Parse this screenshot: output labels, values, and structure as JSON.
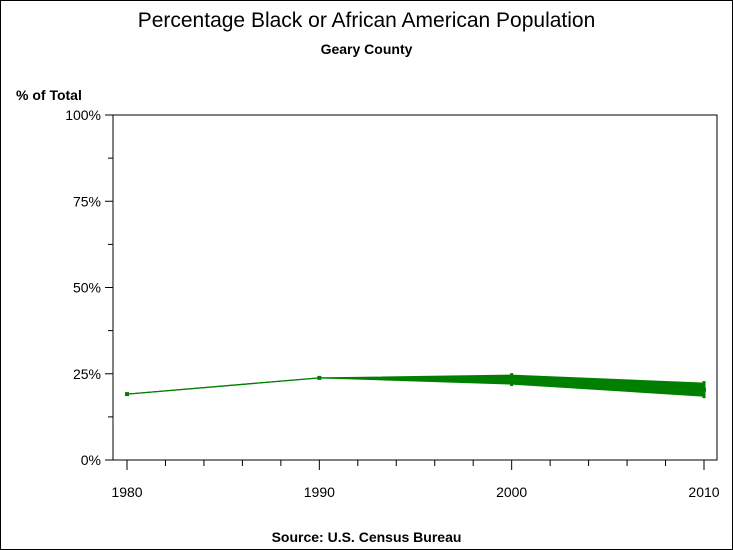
{
  "chart_data": {
    "type": "line",
    "title": "Percentage Black or African American Population",
    "subtitle": "Geary County",
    "ylabel": "% of Total",
    "xlabel": "",
    "footnote": "Source: U.S. Census Bureau",
    "x": [
      1980,
      1990,
      2000,
      2010
    ],
    "xlim": [
      1980,
      2010
    ],
    "xticks": [
      "1980",
      "1990",
      "2000",
      "2010"
    ],
    "ylim": [
      0,
      100
    ],
    "yticks": [
      "0%",
      "25%",
      "50%",
      "75%",
      "100%"
    ],
    "grid": false,
    "series": [
      {
        "name": "Black or African American",
        "color": "#007f00",
        "values": [
          19.1,
          23.8,
          23.3,
          20.4
        ],
        "lower": [
          19.1,
          23.8,
          22.0,
          18.5
        ],
        "upper": [
          19.1,
          23.8,
          24.6,
          22.3
        ]
      }
    ]
  }
}
